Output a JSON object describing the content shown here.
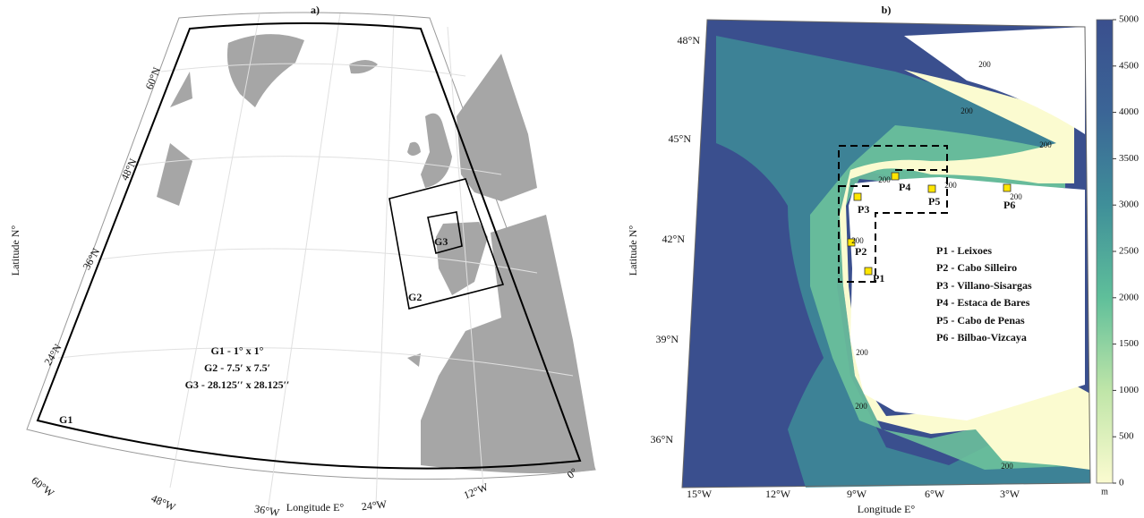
{
  "panel_a": {
    "title": "a)",
    "lat_labels": [
      "60°N",
      "48°N",
      "36°N",
      "24°N"
    ],
    "lon_labels": [
      "60°W",
      "48°W",
      "36°W",
      "24°W",
      "12°W",
      "0°"
    ],
    "y_label": "Latitude N°",
    "x_label": "Longitude E°",
    "grids": [
      "G1",
      "G2",
      "G3"
    ],
    "legend": [
      "G1 - 1° x 1°",
      "G2 - 7.5′ x 7.5′",
      "G3 - 28.125′′ x 28.125′′"
    ]
  },
  "panel_b": {
    "title": "b)",
    "lat_labels": [
      "48°N",
      "45°N",
      "42°N",
      "39°N",
      "36°N"
    ],
    "lon_labels": [
      "15°W",
      "12°W",
      "9°W",
      "6°W",
      "3°W"
    ],
    "y_label": "Latitude N°",
    "x_label": "Longitude E°",
    "points": [
      "P1",
      "P2",
      "P3",
      "P4",
      "P5",
      "P6"
    ],
    "legend": [
      "P1 - Leixoes",
      "P2 - Cabo Silleiro",
      "P3 - Villano-Sisargas",
      "P4 - Estaca de Bares",
      "P5 - Cabo de Penas",
      "P6 - Bilbao-Vizcaya"
    ],
    "contour_labels": [
      "200",
      "200",
      "200",
      "200",
      "200",
      "200",
      "200",
      "200",
      "200",
      "200"
    ],
    "colorbar": {
      "ticks": [
        0,
        500,
        1000,
        1500,
        2000,
        2500,
        3000,
        3500,
        4000,
        4500,
        5000
      ],
      "unit": "m"
    }
  }
}
